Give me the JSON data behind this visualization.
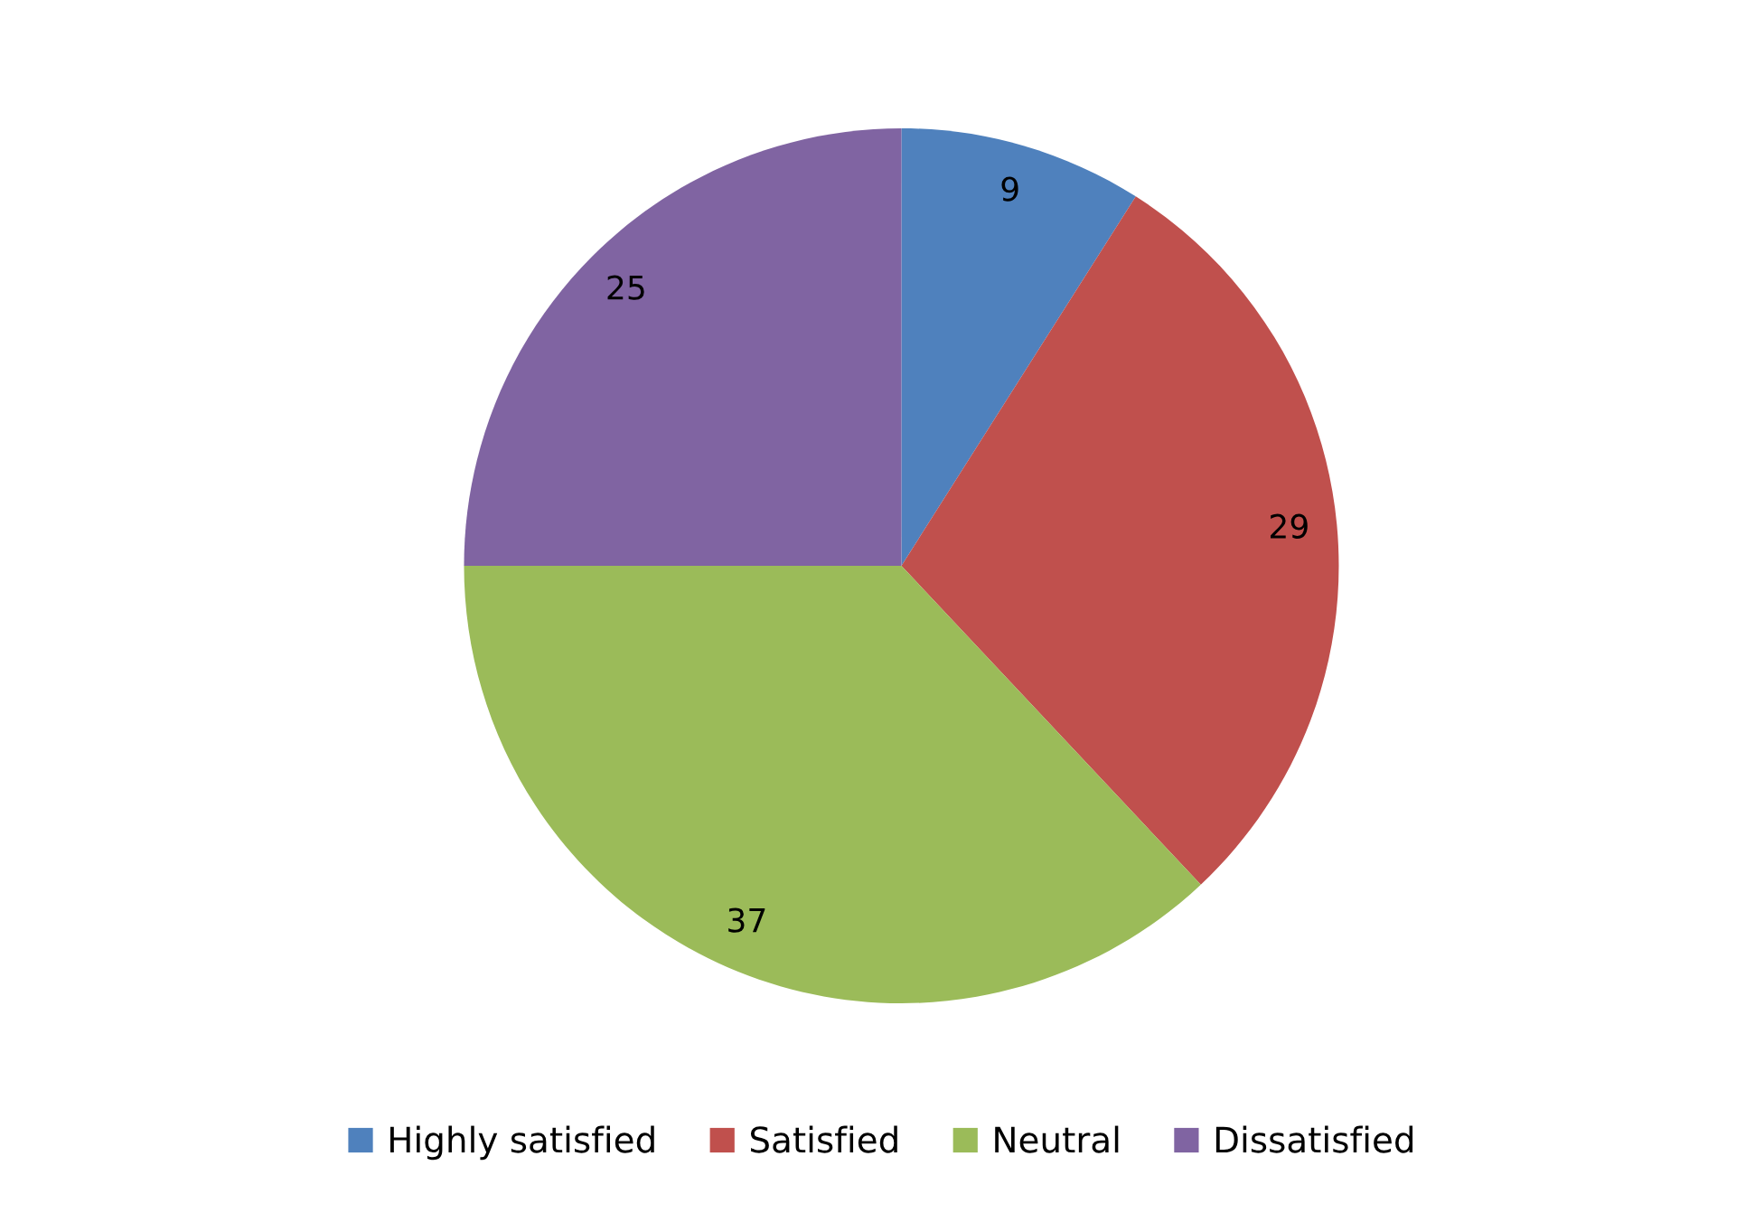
{
  "chart_data": {
    "type": "pie",
    "categories": [
      "Highly satisfied",
      "Satisfied",
      "Neutral",
      "Dissatisfied"
    ],
    "values": [
      9,
      29,
      37,
      25
    ],
    "colors": [
      "#4f81bd",
      "#c0504d",
      "#9bbb59",
      "#8064a2"
    ],
    "data_labels": true,
    "legend": "bottom"
  }
}
